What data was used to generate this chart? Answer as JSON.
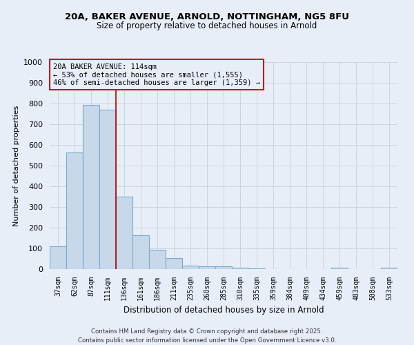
{
  "title_line1": "20A, BAKER AVENUE, ARNOLD, NOTTINGHAM, NG5 8FU",
  "title_line2": "Size of property relative to detached houses in Arnold",
  "xlabel": "Distribution of detached houses by size in Arnold",
  "ylabel": "Number of detached properties",
  "categories": [
    "37sqm",
    "62sqm",
    "87sqm",
    "111sqm",
    "136sqm",
    "161sqm",
    "186sqm",
    "211sqm",
    "235sqm",
    "260sqm",
    "285sqm",
    "310sqm",
    "335sqm",
    "359sqm",
    "384sqm",
    "409sqm",
    "434sqm",
    "459sqm",
    "483sqm",
    "508sqm",
    "533sqm"
  ],
  "bar_heights": [
    110,
    565,
    795,
    770,
    350,
    165,
    95,
    52,
    18,
    13,
    13,
    8,
    5,
    0,
    0,
    0,
    0,
    8,
    0,
    0,
    8
  ],
  "bar_color": "#c8d8eb",
  "bar_edge_color": "#7aaac8",
  "bar_edge_width": 0.8,
  "grid_color": "#c8d0dc",
  "background_color": "#e8eef8",
  "vline_x": 3.5,
  "vline_color": "#aa0000",
  "annotation_text": "20A BAKER AVENUE: 114sqm\n← 53% of detached houses are smaller (1,555)\n46% of semi-detached houses are larger (1,359) →",
  "annotation_box_color": "#cc0000",
  "ylim": [
    0,
    1000
  ],
  "yticks": [
    0,
    100,
    200,
    300,
    400,
    500,
    600,
    700,
    800,
    900,
    1000
  ],
  "footer_line1": "Contains HM Land Registry data © Crown copyright and database right 2025.",
  "footer_line2": "Contains public sector information licensed under the Open Government Licence v3.0."
}
